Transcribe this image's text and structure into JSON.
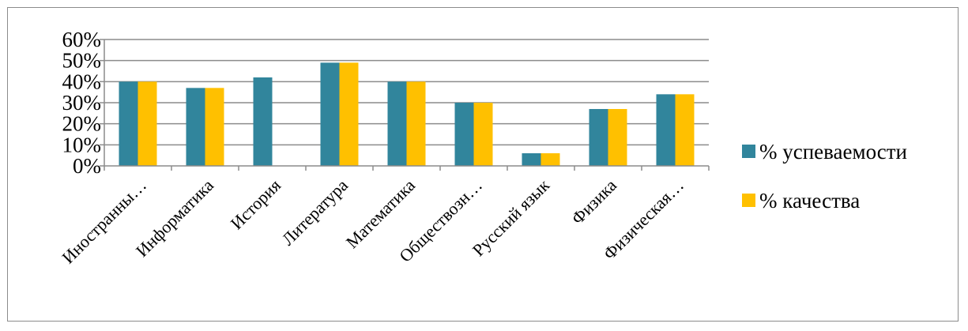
{
  "chart_data": {
    "type": "bar",
    "categories": [
      "Иностранны…",
      "Информатика",
      "История",
      "Литература",
      "Математика",
      "Обществозн…",
      "Русский язык",
      "Физика",
      "Физическая…"
    ],
    "series": [
      {
        "name": "% успеваемости",
        "color": "#31859c",
        "values": [
          40,
          37,
          42,
          49,
          40,
          30,
          6,
          27,
          34
        ]
      },
      {
        "name": "% качества",
        "color": "#ffc000",
        "values": [
          40,
          37,
          0,
          49,
          40,
          30,
          6,
          27,
          34
        ]
      }
    ],
    "y_ticks": [
      "0%",
      "10%",
      "20%",
      "30%",
      "40%",
      "50%",
      "60%"
    ],
    "ylim": [
      0,
      60
    ],
    "grid": true,
    "legend_position": "right",
    "title": "",
    "xlabel": "",
    "ylabel": ""
  }
}
